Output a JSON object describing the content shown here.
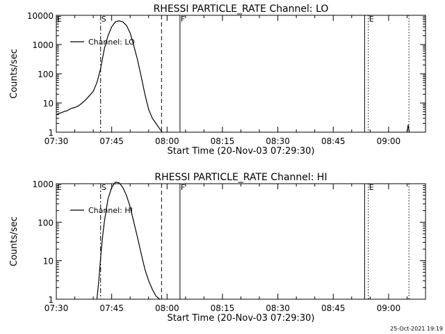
{
  "footer_timestamp": "25-Oct-2021 19:19",
  "chart_data": [
    {
      "type": "line",
      "title": "RHESSI PARTICLE_RATE Channel: LO",
      "xlabel": "Start Time (20-Nov-03 07:29:30)",
      "ylabel": "Counts/sec",
      "y_scale": "log",
      "ylim": [
        1,
        10000
      ],
      "xlim_minutes": [
        0,
        100
      ],
      "x_ticks": [
        {
          "m": 0,
          "label": "07:30"
        },
        {
          "m": 15,
          "label": "07:45"
        },
        {
          "m": 30,
          "label": "08:00"
        },
        {
          "m": 45,
          "label": "08:15"
        },
        {
          "m": 60,
          "label": "08:30"
        },
        {
          "m": 75,
          "label": "08:45"
        },
        {
          "m": 90,
          "label": "09:00"
        }
      ],
      "y_ticks": [
        {
          "v": 1,
          "label": "1"
        },
        {
          "v": 10,
          "label": "10"
        },
        {
          "v": 100,
          "label": "100"
        },
        {
          "v": 1000,
          "label": "1000"
        },
        {
          "v": 10000,
          "label": "10000"
        }
      ],
      "legend": {
        "label": "Channel: LO",
        "position": "top-left"
      },
      "markers": [
        {
          "m": 0,
          "label": "E",
          "style": "none"
        },
        {
          "m": 12,
          "label": "S",
          "style": "dashdot"
        },
        {
          "m": 28.5,
          "label": "",
          "style": "dashed"
        },
        {
          "m": 33.5,
          "label": "F",
          "style": "solid"
        },
        {
          "m": 83.5,
          "label": "",
          "style": "solid"
        },
        {
          "m": 84.5,
          "label": "E",
          "style": "dotted"
        },
        {
          "m": 95.5,
          "label": "",
          "style": "dotted"
        }
      ],
      "series": [
        {
          "name": "Channel: LO",
          "x": [
            0,
            1,
            2,
            3,
            4,
            5,
            6,
            7,
            8,
            9,
            10,
            11,
            12,
            13,
            14,
            15,
            16,
            17,
            18,
            19,
            20,
            21,
            22,
            23,
            24,
            25,
            26,
            27,
            28,
            28.7
          ],
          "y": [
            4,
            4.5,
            5,
            5.5,
            6.5,
            7,
            8,
            10,
            13,
            18,
            25,
            50,
            150,
            700,
            2000,
            4000,
            6000,
            6500,
            6000,
            4500,
            2500,
            900,
            300,
            80,
            20,
            6,
            3,
            2,
            1.3,
            1
          ]
        },
        {
          "name": "",
          "x": [
            95.0,
            95.3,
            95.6
          ],
          "y": [
            1,
            1.8,
            1
          ]
        }
      ]
    },
    {
      "type": "line",
      "title": "RHESSI PARTICLE_RATE Channel: HI",
      "xlabel": "Start Time (20-Nov-03 07:29:30)",
      "ylabel": "Counts/sec",
      "y_scale": "log",
      "ylim": [
        1,
        1000
      ],
      "xlim_minutes": [
        0,
        100
      ],
      "x_ticks": [
        {
          "m": 0,
          "label": "07:30"
        },
        {
          "m": 15,
          "label": "07:45"
        },
        {
          "m": 30,
          "label": "08:00"
        },
        {
          "m": 45,
          "label": "08:15"
        },
        {
          "m": 60,
          "label": "08:30"
        },
        {
          "m": 75,
          "label": "08:45"
        },
        {
          "m": 90,
          "label": "09:00"
        }
      ],
      "y_ticks": [
        {
          "v": 1,
          "label": "1"
        },
        {
          "v": 10,
          "label": "10"
        },
        {
          "v": 100,
          "label": "100"
        },
        {
          "v": 1000,
          "label": "1000"
        }
      ],
      "legend": {
        "label": "Channel: HI",
        "position": "top-left"
      },
      "markers": [
        {
          "m": 0,
          "label": "E",
          "style": "none"
        },
        {
          "m": 12,
          "label": "S",
          "style": "dashdot"
        },
        {
          "m": 28.5,
          "label": "",
          "style": "dashed"
        },
        {
          "m": 33.5,
          "label": "F",
          "style": "solid"
        },
        {
          "m": 83.5,
          "label": "",
          "style": "solid"
        },
        {
          "m": 84.5,
          "label": "E",
          "style": "dotted"
        },
        {
          "m": 95.5,
          "label": "",
          "style": "dotted"
        }
      ],
      "series": [
        {
          "name": "Channel: HI",
          "x": [
            11,
            11.5,
            12,
            12.5,
            13,
            14,
            15,
            16,
            17,
            18,
            19,
            20,
            21,
            22,
            23,
            24,
            25,
            26,
            27,
            28
          ],
          "y": [
            1,
            3,
            12,
            40,
            100,
            400,
            800,
            1100,
            1050,
            800,
            500,
            250,
            100,
            40,
            15,
            6,
            3,
            1.8,
            1.2,
            1
          ]
        }
      ]
    }
  ]
}
